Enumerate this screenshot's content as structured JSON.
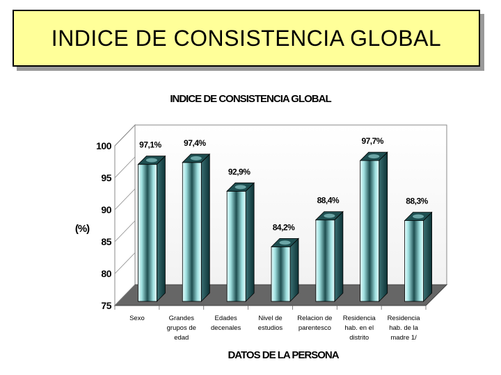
{
  "banner": {
    "title": "INDICE DE CONSISTENCIA GLOBAL"
  },
  "colors": {
    "banner_bg": "#ffff99",
    "bar_light": "#e6ffff",
    "bar_dark": "#0d3336",
    "floor": "#666666"
  },
  "chart_data": {
    "type": "bar",
    "title": "INDICE DE CONSISTENCIA GLOBAL",
    "xlabel": "DATOS DE LA PERSONA",
    "ylabel": "(%)",
    "ylim": [
      75,
      100
    ],
    "yticks": [
      "75",
      "80",
      "85",
      "90",
      "95",
      "100"
    ],
    "categories": [
      [
        "Sexo"
      ],
      [
        "Grandes",
        "grupos de",
        "edad"
      ],
      [
        "Edades",
        "decenales"
      ],
      [
        "Nivel de",
        "estudios"
      ],
      [
        "Relacion de",
        "parentesco"
      ],
      [
        "Residencia",
        "hab. en el",
        "distrito"
      ],
      [
        "Residencia",
        "hab. de la",
        "madre   1/"
      ]
    ],
    "values": [
      97.1,
      97.4,
      92.9,
      84.2,
      88.4,
      97.7,
      88.3
    ],
    "value_labels": [
      "97,1%",
      "97,4%",
      "92,9%",
      "84,2%",
      "88,4%",
      "97,7%",
      "88,3%"
    ],
    "grid": false
  }
}
